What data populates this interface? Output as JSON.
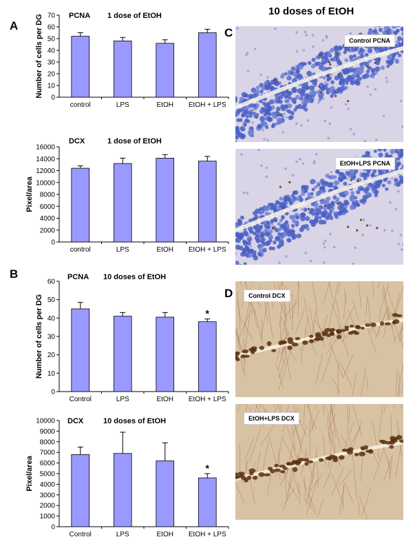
{
  "figure": {
    "right_title": "10 doses of EtOH",
    "panel_letters": [
      "A",
      "B",
      "C",
      "D"
    ]
  },
  "images": [
    {
      "key": "c1",
      "label": "Control PCNA",
      "stain": "pcna"
    },
    {
      "key": "c2",
      "label": "EtOH+LPS PCNA",
      "stain": "pcna"
    },
    {
      "key": "d1",
      "label": "Control DCX",
      "stain": "dcx"
    },
    {
      "key": "d2",
      "label": "EtOH+LPS DCX",
      "stain": "dcx"
    }
  ],
  "colors": {
    "bar_fill": "#9999ff",
    "bar_stroke": "#000000"
  },
  "chart_data": [
    {
      "type": "bar",
      "marker": "PCNA",
      "dose": "1 dose of EtOH",
      "ylabel": "Number of cells per DG",
      "categories": [
        "control",
        "LPS",
        "EtOH",
        "EtOH + LPS"
      ],
      "values": [
        52,
        48,
        46,
        55
      ],
      "errors": [
        3,
        3,
        3,
        3
      ],
      "significant": [
        false,
        false,
        false,
        false
      ],
      "ylim": [
        0,
        70
      ],
      "yticks": [
        0,
        10,
        20,
        30,
        40,
        50,
        60,
        70
      ]
    },
    {
      "type": "bar",
      "marker": "DCX",
      "dose": "1 dose of EtOH",
      "ylabel": "Pixel/area",
      "categories": [
        "control",
        "LPS",
        "EtOH",
        "EtOH + LPS"
      ],
      "values": [
        12400,
        13200,
        14100,
        13600
      ],
      "errors": [
        400,
        900,
        600,
        800
      ],
      "significant": [
        false,
        false,
        false,
        false
      ],
      "ylim": [
        0,
        16000
      ],
      "yticks": [
        0,
        2000,
        4000,
        6000,
        8000,
        10000,
        12000,
        14000,
        16000
      ]
    },
    {
      "type": "bar",
      "marker": "PCNA",
      "dose": "10 doses of EtOH",
      "ylabel": "Number of cells per DG",
      "categories": [
        "Control",
        "LPS",
        "EtOH",
        "EtOH + LPS"
      ],
      "values": [
        45,
        41,
        40.5,
        38
      ],
      "errors": [
        3.5,
        2,
        2.5,
        1.5
      ],
      "significant": [
        false,
        false,
        false,
        true
      ],
      "sig_marker": "*",
      "ylim": [
        0,
        60
      ],
      "yticks": [
        0,
        10,
        20,
        30,
        40,
        50,
        60
      ]
    },
    {
      "type": "bar",
      "marker": "DCX",
      "dose": "10 doses of EtOH",
      "ylabel": "Pixel/area",
      "categories": [
        "Control",
        "LPS",
        "EtOH",
        "EtOH + LPS"
      ],
      "values": [
        6800,
        6900,
        6200,
        4600
      ],
      "errors": [
        700,
        2000,
        1700,
        400
      ],
      "significant": [
        false,
        false,
        false,
        true
      ],
      "sig_marker": "*",
      "ylim": [
        0,
        10000
      ],
      "yticks": [
        0,
        1000,
        2000,
        3000,
        4000,
        5000,
        6000,
        7000,
        8000,
        9000,
        10000
      ]
    }
  ]
}
